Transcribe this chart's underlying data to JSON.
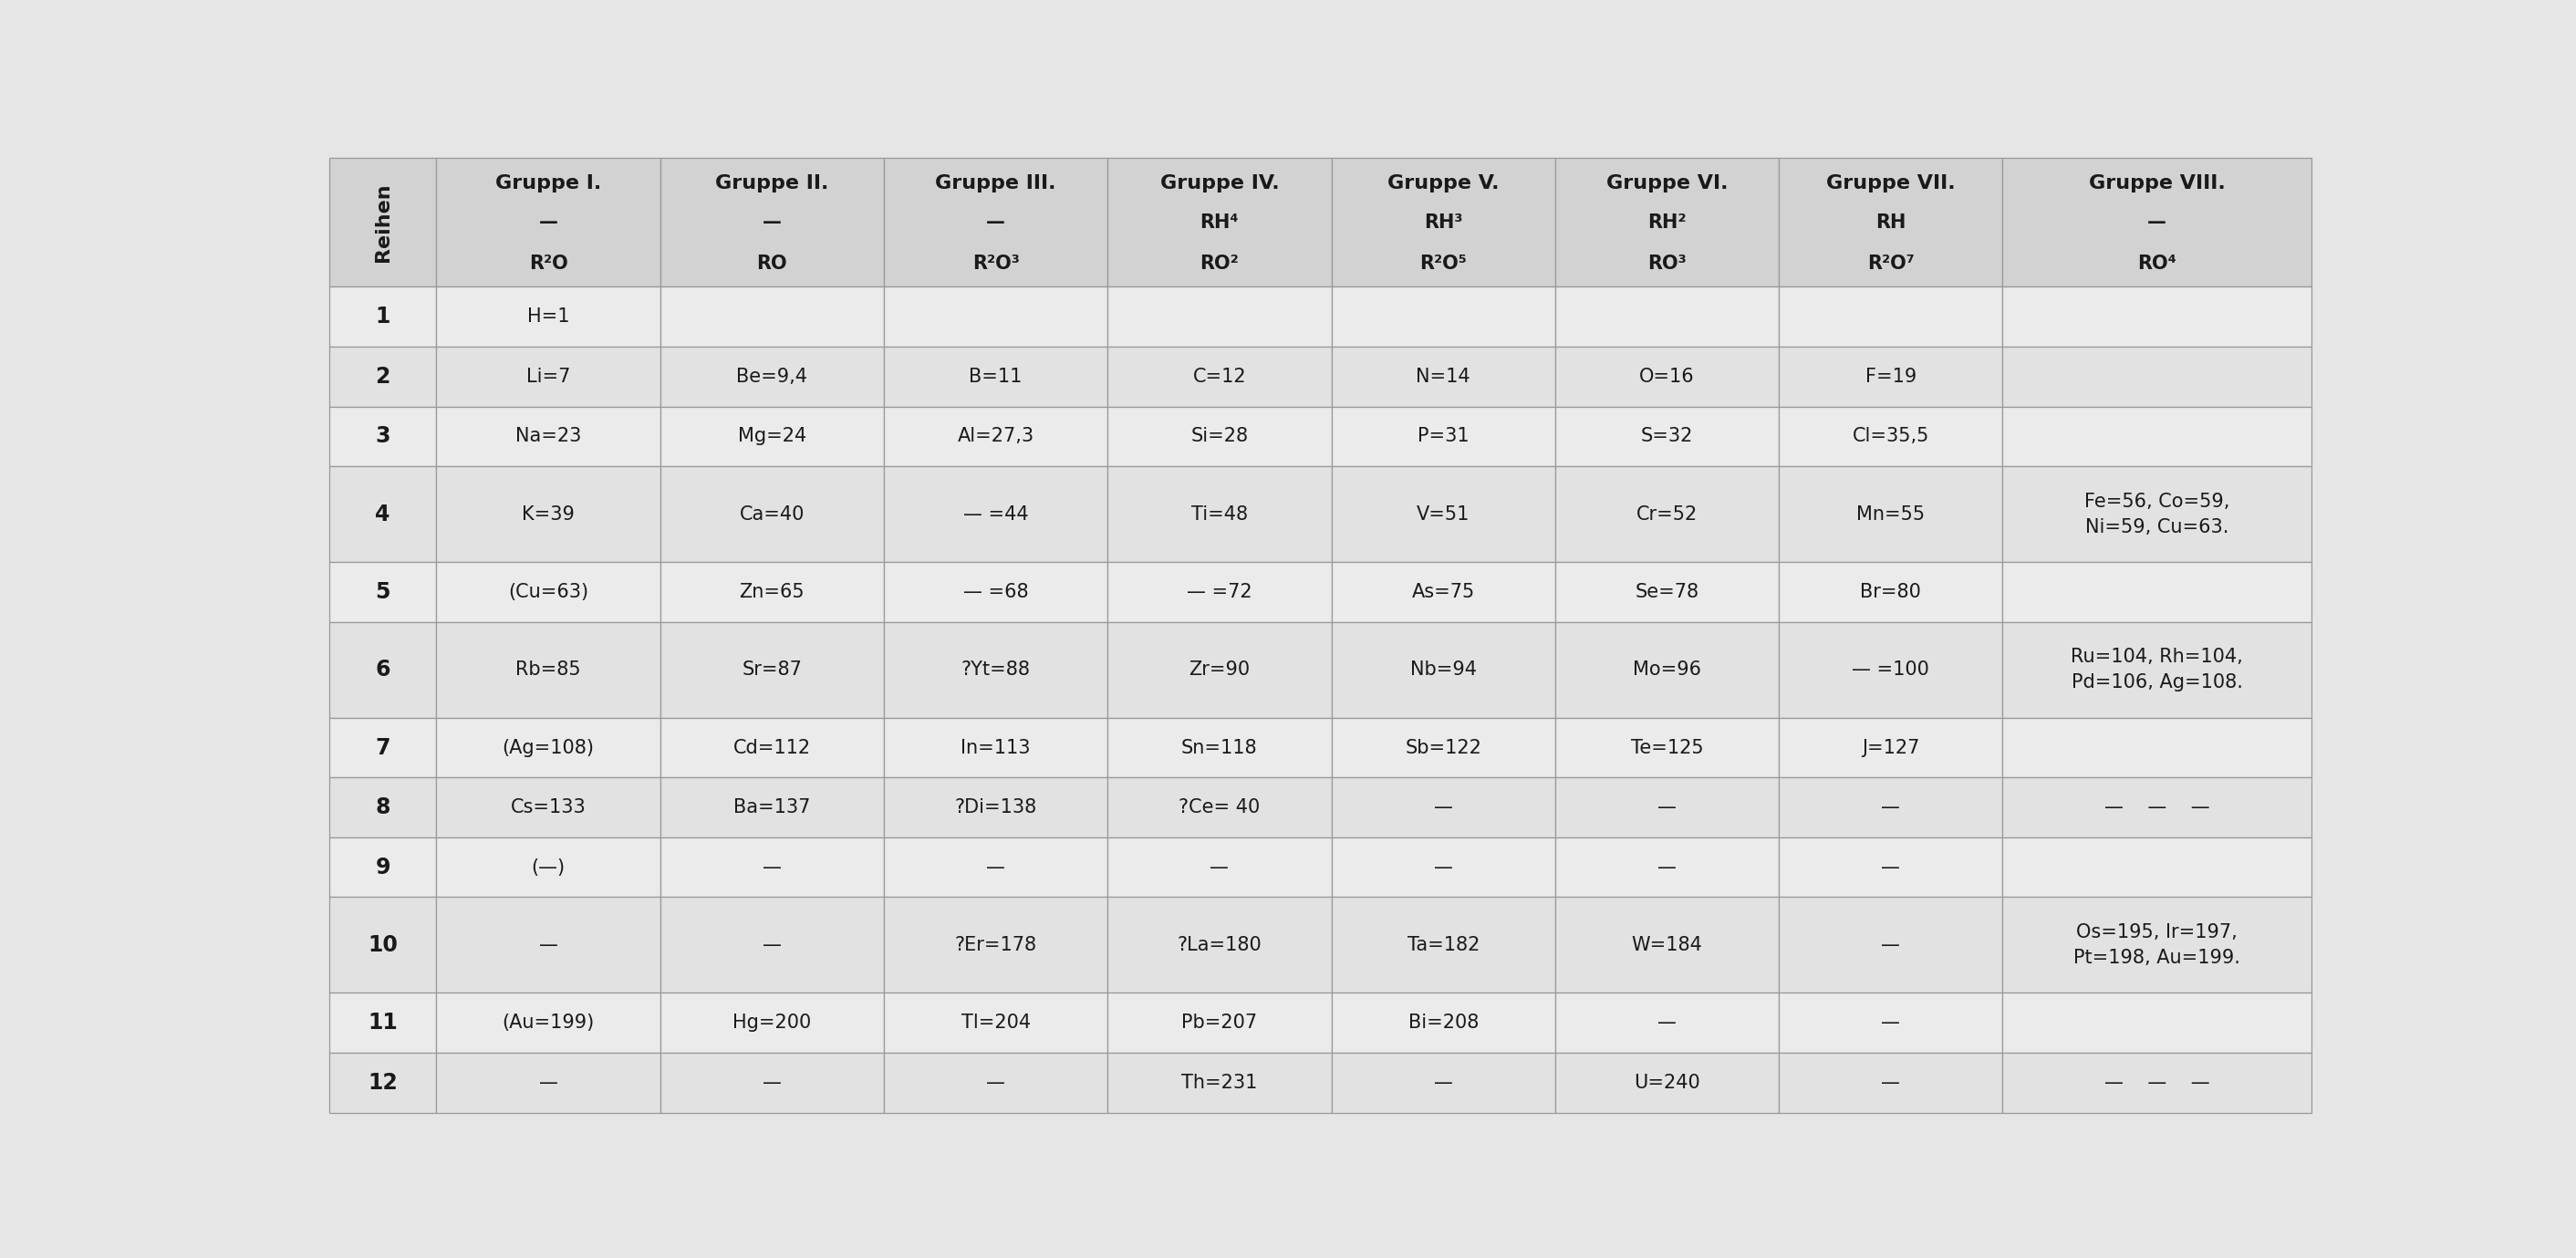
{
  "background_color": "#e6e6e6",
  "header_bg": "#d2d2d2",
  "cell_bg_even": "#ebebeb",
  "cell_bg_odd": "#e2e2e2",
  "border_color": "#aaaaaa",
  "text_color": "#1a1a1a",
  "col_keys_display": [
    "Reihen",
    "Gruppe I.",
    "Gruppe II.",
    "Gruppe III.",
    "Gruppe IV.",
    "Gruppe V.",
    "Gruppe VI.",
    "Gruppe VII.",
    "Gruppe VIII."
  ],
  "col_line2": [
    "",
    "—",
    "—",
    "—",
    "RH⁴",
    "RH³",
    "RH²",
    "RH",
    "—"
  ],
  "col_line3": [
    "",
    "R²O",
    "RO",
    "R²O³",
    "RO²",
    "R²O⁵",
    "RO³",
    "R²O⁷",
    "RO⁴"
  ],
  "rows": [
    {
      "reihe": "1",
      "I": "H=1",
      "II": "",
      "III": "",
      "IV": "",
      "V": "",
      "VI": "",
      "VII": "",
      "VIII": ""
    },
    {
      "reihe": "2",
      "I": "Li=7",
      "II": "Be=9,4",
      "III": "B=11",
      "IV": "C=12",
      "V": "N=14",
      "VI": "O=16",
      "VII": "F=19",
      "VIII": ""
    },
    {
      "reihe": "3",
      "I": "Na=23",
      "II": "Mg=24",
      "III": "Al=27,3",
      "IV": "Si=28",
      "V": "P=31",
      "VI": "S=32",
      "VII": "Cl=35,5",
      "VIII": ""
    },
    {
      "reihe": "4",
      "I": "K=39",
      "II": "Ca=40",
      "III": "— =44",
      "IV": "Ti=48",
      "V": "V=51",
      "VI": "Cr=52",
      "VII": "Mn=55",
      "VIII": "Fe=56, Co=59,\nNi=59, Cu=63."
    },
    {
      "reihe": "5",
      "I": "(Cu=63)",
      "II": "Zn=65",
      "III": "— =68",
      "IV": "— =72",
      "V": "As=75",
      "VI": "Se=78",
      "VII": "Br=80",
      "VIII": ""
    },
    {
      "reihe": "6",
      "I": "Rb=85",
      "II": "Sr=87",
      "III": "?Yt=88",
      "IV": "Zr=90",
      "V": "Nb=94",
      "VI": "Mo=96",
      "VII": "— =100",
      "VIII": "Ru=104, Rh=104,\nPd=106, Ag=108."
    },
    {
      "reihe": "7",
      "I": "(Ag=108)",
      "II": "Cd=112",
      "III": "In=113",
      "IV": "Sn=118",
      "V": "Sb=122",
      "VI": "Te=125",
      "VII": "J=127",
      "VIII": ""
    },
    {
      "reihe": "8",
      "I": "Cs=133",
      "II": "Ba=137",
      "III": "?Di=138",
      "IV": "?Ce= 40",
      "V": "—",
      "VI": "—",
      "VII": "—",
      "VIII": "—    —    —"
    },
    {
      "reihe": "9",
      "I": "(—)",
      "II": "—",
      "III": "—",
      "IV": "—",
      "V": "—",
      "VI": "—",
      "VII": "—",
      "VIII": ""
    },
    {
      "reihe": "10",
      "I": "—",
      "II": "—",
      "III": "?Er=178",
      "IV": "?La=180",
      "V": "Ta=182",
      "VI": "W=184",
      "VII": "—",
      "VIII": "Os=195, Ir=197,\nPt=198, Au=199."
    },
    {
      "reihe": "11",
      "I": "(Au=199)",
      "II": "Hg=200",
      "III": "Tl=204",
      "IV": "Pb=207",
      "V": "Bi=208",
      "VI": "—",
      "VII": "—",
      "VIII": ""
    },
    {
      "reihe": "12",
      "I": "—",
      "II": "—",
      "III": "—",
      "IV": "Th=231",
      "V": "—",
      "VI": "U=240",
      "VII": "—",
      "VIII": "—    —    —"
    }
  ],
  "row_heights_norm": [
    1.0,
    1.0,
    1.0,
    1.6,
    1.0,
    1.6,
    1.0,
    1.0,
    1.0,
    1.6,
    1.0,
    1.0
  ],
  "col_widths_norm": [
    0.48,
    1.0,
    1.0,
    1.0,
    1.0,
    1.0,
    1.0,
    1.0,
    1.38
  ]
}
